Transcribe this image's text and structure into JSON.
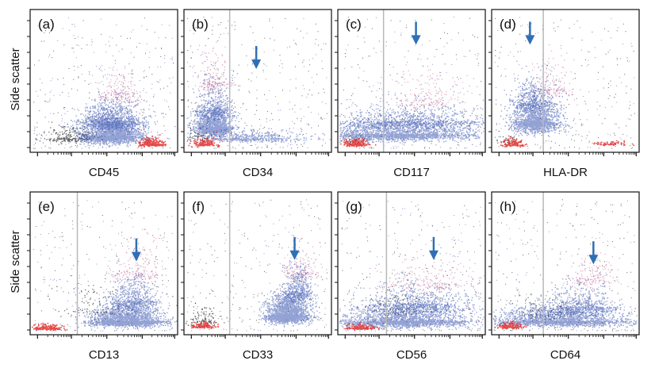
{
  "figure": {
    "y_axis_label": "Side scatter",
    "colors": {
      "main_population": "#3b56b0",
      "lymphocytes": "#e0201e",
      "debris": "#2a2a2a",
      "granulocyte_tail": "#b9407a",
      "gate_line": "#b8b8b8",
      "arrow": "#2f6fb5"
    }
  },
  "chart_data": [
    {
      "panel": "(a)",
      "type": "scatter",
      "xlabel": "CD45",
      "ylabel": "Side scatter",
      "gate": false,
      "arrow": false
    },
    {
      "panel": "(b)",
      "type": "scatter",
      "xlabel": "CD34",
      "ylabel": "",
      "gate": true,
      "arrow": true
    },
    {
      "panel": "(c)",
      "type": "scatter",
      "xlabel": "CD117",
      "ylabel": "",
      "gate": true,
      "arrow": true
    },
    {
      "panel": "(d)",
      "type": "scatter",
      "xlabel": "HLA-DR",
      "ylabel": "",
      "gate": true,
      "arrow": true
    },
    {
      "panel": "(e)",
      "type": "scatter",
      "xlabel": "CD13",
      "ylabel": "Side scatter",
      "gate": true,
      "arrow": true
    },
    {
      "panel": "(f)",
      "type": "scatter",
      "xlabel": "CD33",
      "ylabel": "",
      "gate": true,
      "arrow": true
    },
    {
      "panel": "(g)",
      "type": "scatter",
      "xlabel": "CD56",
      "ylabel": "",
      "gate": true,
      "arrow": true
    },
    {
      "panel": "(h)",
      "type": "scatter",
      "xlabel": "CD64",
      "ylabel": "",
      "gate": true,
      "arrow": true
    }
  ]
}
